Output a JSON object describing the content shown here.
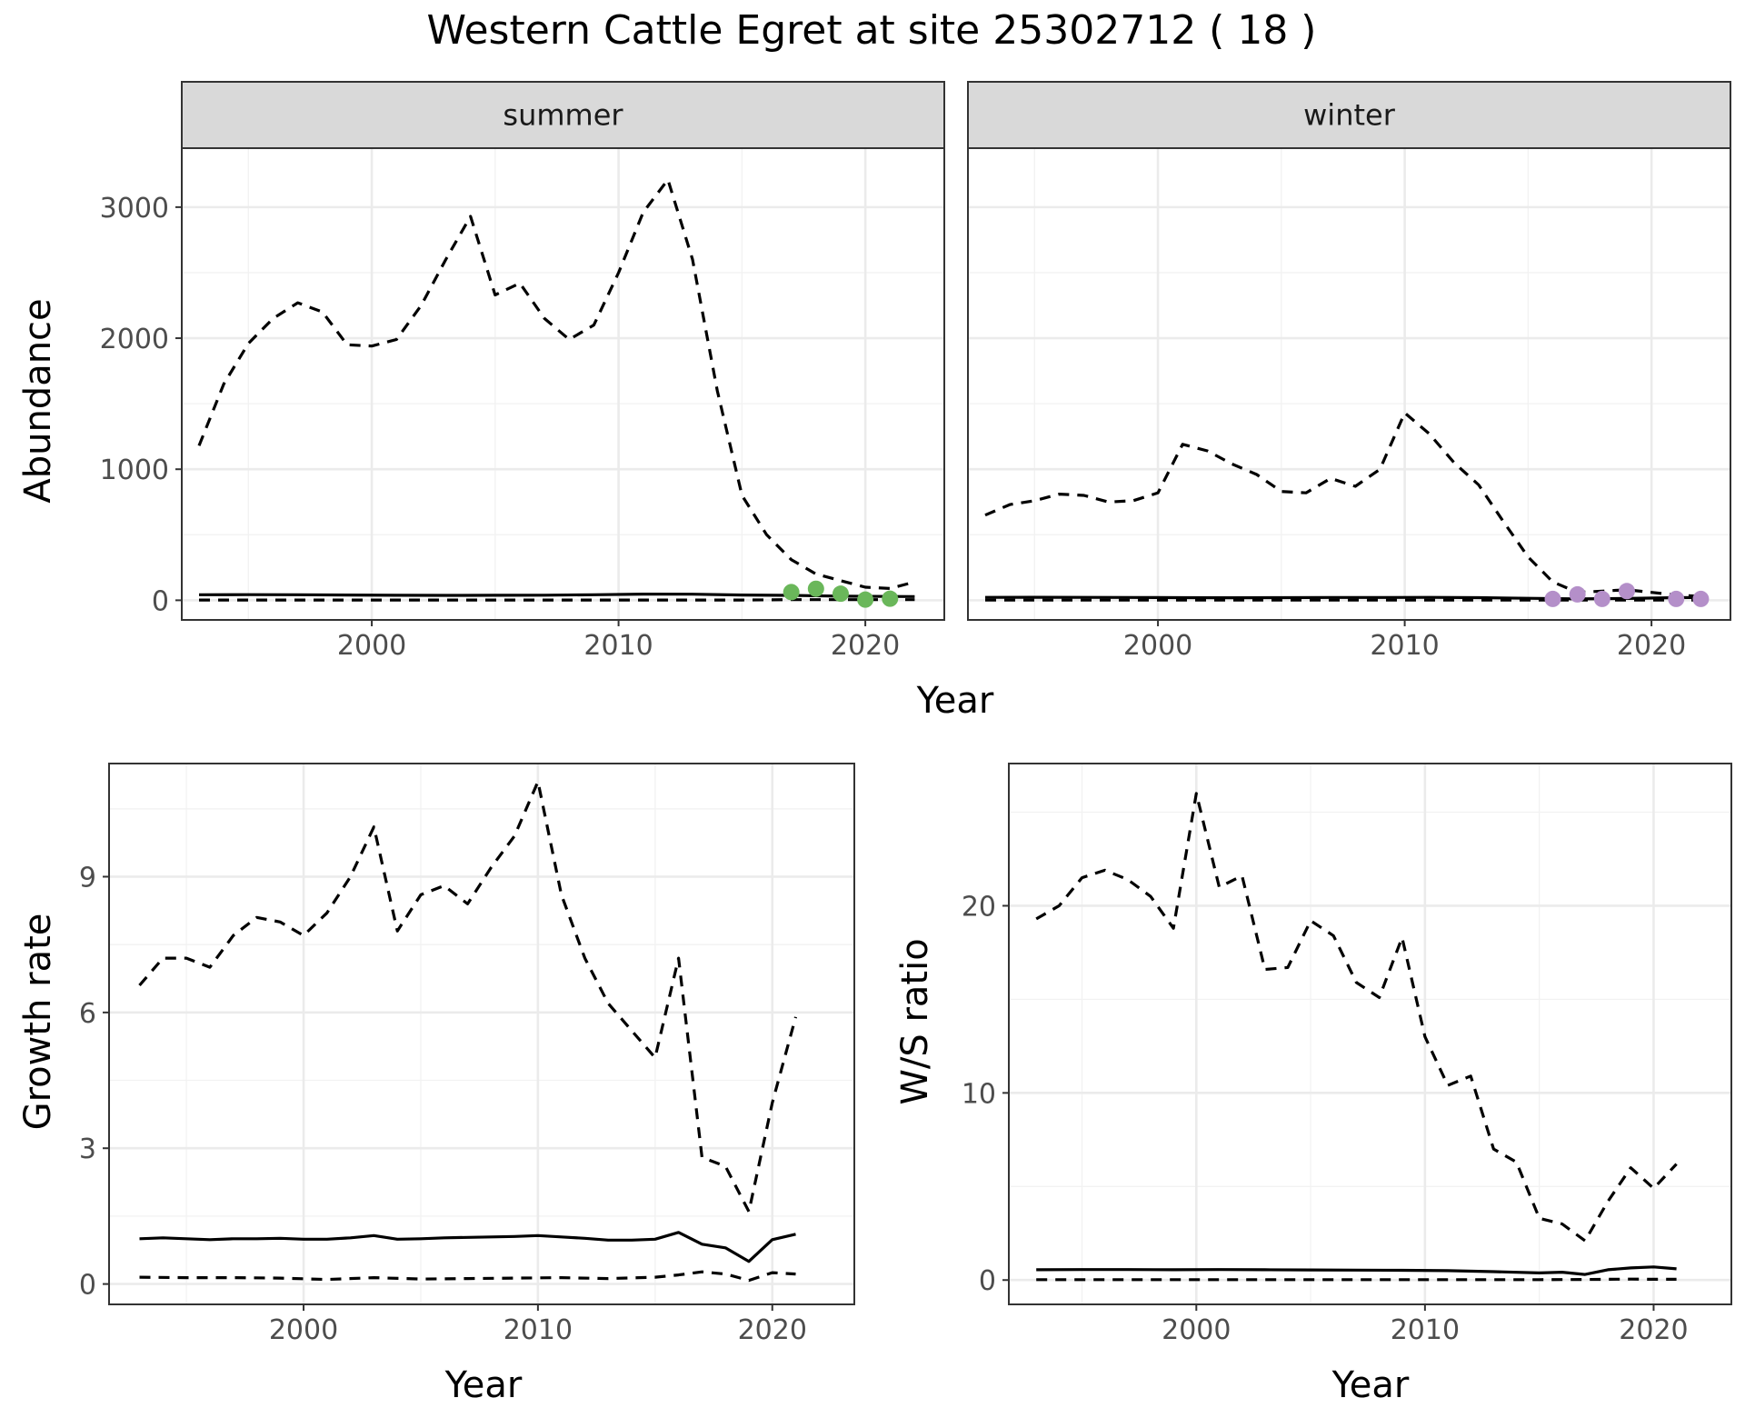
{
  "figure": {
    "title": "Western Cattle Egret at site 25302712 ( 18 )",
    "colors": {
      "summer_points": "#6ab75a",
      "winter_points": "#b48fc9",
      "lines": "#000000",
      "strip": "#d9d9d9"
    }
  },
  "chart_data": [
    {
      "id": "abundance",
      "type": "line",
      "ylabel": "Abundance",
      "xlabel": "Year",
      "facets": [
        "summer",
        "winter"
      ],
      "xlim": [
        1992.3,
        2023.2
      ],
      "ylim": [
        -150,
        3450
      ],
      "x_major_ticks": [
        2000,
        2010,
        2020
      ],
      "y_major_ticks": [
        0,
        1000,
        2000,
        3000
      ],
      "grid": true,
      "panels": [
        {
          "facet": "summer",
          "point_color": "#6ab75a",
          "series": [
            {
              "style": "dashed",
              "x": [
                1993,
                1994,
                1995,
                1996,
                1997,
                1998,
                1999,
                2000,
                2001,
                2002,
                2003,
                2004,
                2005,
                2006,
                2007,
                2008,
                2009,
                2010,
                2011,
                2012,
                2013,
                2014,
                2015,
                2016,
                2017,
                2018,
                2019,
                2020,
                2021,
                2022
              ],
              "y": [
                1180,
                1650,
                1960,
                2150,
                2270,
                2200,
                1950,
                1940,
                1990,
                2250,
                2600,
                2930,
                2330,
                2420,
                2150,
                1990,
                2100,
                2500,
                2960,
                3210,
                2600,
                1600,
                800,
                500,
                310,
                200,
                150,
                100,
                90,
                140
              ]
            },
            {
              "style": "solid",
              "x": [
                1993,
                1995,
                1997,
                1999,
                2001,
                2003,
                2005,
                2007,
                2009,
                2011,
                2013,
                2015,
                2017,
                2019,
                2021,
                2022
              ],
              "y": [
                42,
                43,
                42,
                40,
                38,
                37,
                38,
                39,
                42,
                47,
                46,
                40,
                37,
                31,
                29,
                28
              ]
            },
            {
              "style": "dashed",
              "x": [
                1993,
                1995,
                1997,
                1999,
                2001,
                2003,
                2005,
                2007,
                2009,
                2011,
                2013,
                2015,
                2017,
                2019,
                2021,
                2022
              ],
              "y": [
                2,
                2,
                2,
                2,
                2,
                2,
                2,
                2,
                2,
                2,
                2,
                2,
                5,
                5,
                5,
                5
              ]
            }
          ],
          "points": {
            "x": [
              2017,
              2018,
              2019,
              2020,
              2021
            ],
            "y": [
              62,
              88,
              50,
              5,
              12
            ]
          }
        },
        {
          "facet": "winter",
          "point_color": "#b48fc9",
          "series": [
            {
              "style": "dashed",
              "x": [
                1993,
                1994,
                1995,
                1996,
                1997,
                1998,
                1999,
                2000,
                2001,
                2002,
                2003,
                2004,
                2005,
                2006,
                2007,
                2008,
                2009,
                2010,
                2011,
                2012,
                2013,
                2014,
                2015,
                2016,
                2017,
                2018,
                2019,
                2020,
                2021,
                2022
              ],
              "y": [
                650,
                730,
                760,
                810,
                800,
                750,
                760,
                820,
                1190,
                1140,
                1040,
                960,
                830,
                820,
                930,
                870,
                1000,
                1430,
                1270,
                1050,
                880,
                600,
                330,
                140,
                60,
                70,
                80,
                60,
                40,
                30
              ]
            },
            {
              "style": "solid",
              "x": [
                1993,
                1995,
                1997,
                1999,
                2001,
                2003,
                2005,
                2007,
                2009,
                2011,
                2013,
                2015,
                2017,
                2019,
                2021,
                2022
              ],
              "y": [
                22,
                23,
                22,
                21,
                20,
                19,
                20,
                21,
                21,
                22,
                20,
                15,
                10,
                14,
                20,
                21
              ]
            },
            {
              "style": "dashed",
              "x": [
                1993,
                1995,
                1997,
                1999,
                2001,
                2003,
                2005,
                2007,
                2009,
                2011,
                2013,
                2015,
                2017,
                2019,
                2021,
                2022
              ],
              "y": [
                1,
                1,
                1,
                1,
                1,
                1,
                1,
                1,
                1,
                1,
                1,
                1,
                1,
                1,
                1,
                1
              ]
            }
          ],
          "points": {
            "x": [
              2016,
              2017,
              2018,
              2019,
              2021,
              2022
            ],
            "y": [
              10,
              45,
              10,
              70,
              10,
              10
            ]
          }
        }
      ]
    },
    {
      "id": "growth",
      "type": "line",
      "ylabel": "Growth rate",
      "xlabel": "Year",
      "xlim": [
        1991.7,
        2023.5
      ],
      "ylim": [
        -0.45,
        11.5
      ],
      "x_major_ticks": [
        2000,
        2010,
        2020
      ],
      "y_major_ticks": [
        0,
        3,
        6,
        9
      ],
      "grid": true,
      "series": [
        {
          "style": "dashed",
          "x": [
            1993,
            1994,
            1995,
            1996,
            1997,
            1998,
            1999,
            2000,
            2001,
            2002,
            2003,
            2004,
            2005,
            2006,
            2007,
            2008,
            2009,
            2010,
            2011,
            2012,
            2013,
            2014,
            2015,
            2016,
            2017,
            2018,
            2019,
            2020,
            2021
          ],
          "y": [
            6.6,
            7.2,
            7.2,
            7.0,
            7.7,
            8.1,
            8.0,
            7.7,
            8.2,
            9.0,
            10.1,
            7.8,
            8.6,
            8.8,
            8.4,
            9.2,
            9.9,
            11.1,
            8.6,
            7.2,
            6.2,
            5.6,
            5.0,
            7.2,
            2.8,
            2.6,
            1.6,
            4.0,
            5.9
          ]
        },
        {
          "style": "solid",
          "x": [
            1993,
            1994,
            1995,
            1996,
            1997,
            1998,
            1999,
            2000,
            2001,
            2002,
            2003,
            2004,
            2005,
            2006,
            2007,
            2008,
            2009,
            2010,
            2011,
            2012,
            2013,
            2014,
            2015,
            2016,
            2017,
            2018,
            2019,
            2020,
            2021
          ],
          "y": [
            1.0,
            1.02,
            1.0,
            0.98,
            1.0,
            1.0,
            1.01,
            0.99,
            0.99,
            1.02,
            1.07,
            0.99,
            1.0,
            1.02,
            1.03,
            1.04,
            1.05,
            1.07,
            1.04,
            1.01,
            0.97,
            0.97,
            0.99,
            1.14,
            0.88,
            0.8,
            0.5,
            0.98,
            1.1
          ]
        },
        {
          "style": "dashed",
          "x": [
            1993,
            1995,
            1997,
            1999,
            2001,
            2003,
            2005,
            2007,
            2009,
            2011,
            2013,
            2015,
            2016,
            2017,
            2018,
            2019,
            2020,
            2021
          ],
          "y": [
            0.15,
            0.14,
            0.14,
            0.13,
            0.1,
            0.14,
            0.11,
            0.12,
            0.13,
            0.14,
            0.12,
            0.15,
            0.2,
            0.27,
            0.22,
            0.08,
            0.25,
            0.22
          ]
        }
      ]
    },
    {
      "id": "ratio",
      "type": "line",
      "ylabel": "W/S ratio",
      "xlabel": "Year",
      "xlim": [
        1991.8,
        2023.4
      ],
      "ylim": [
        -1.3,
        27.6
      ],
      "x_major_ticks": [
        2000,
        2010,
        2020
      ],
      "y_major_ticks": [
        0,
        10,
        20
      ],
      "grid": true,
      "series": [
        {
          "style": "dashed",
          "x": [
            1993,
            1994,
            1995,
            1996,
            1997,
            1998,
            1999,
            2000,
            2001,
            2002,
            2003,
            2004,
            2005,
            2006,
            2007,
            2008,
            2009,
            2010,
            2011,
            2012,
            2013,
            2014,
            2015,
            2016,
            2017,
            2018,
            2019,
            2020,
            2021
          ],
          "y": [
            19.3,
            20.0,
            21.5,
            21.9,
            21.4,
            20.5,
            18.8,
            26.0,
            21.0,
            21.6,
            16.6,
            16.7,
            19.2,
            18.4,
            15.9,
            15.1,
            18.3,
            13.0,
            10.4,
            10.9,
            7.0,
            6.3,
            3.3,
            3.0,
            2.1,
            4.2,
            6.0,
            4.9,
            6.2
          ]
        },
        {
          "style": "solid",
          "x": [
            1993,
            1995,
            1997,
            1999,
            2001,
            2003,
            2005,
            2007,
            2009,
            2011,
            2013,
            2015,
            2016,
            2017,
            2018,
            2019,
            2020,
            2021
          ],
          "y": [
            0.55,
            0.56,
            0.56,
            0.55,
            0.56,
            0.55,
            0.54,
            0.53,
            0.52,
            0.5,
            0.45,
            0.38,
            0.42,
            0.3,
            0.55,
            0.65,
            0.7,
            0.6
          ]
        },
        {
          "style": "dashed",
          "x": [
            1993,
            1995,
            1997,
            1999,
            2001,
            2003,
            2005,
            2007,
            2009,
            2011,
            2013,
            2015,
            2017,
            2019,
            2020,
            2021
          ],
          "y": [
            0.02,
            0.02,
            0.02,
            0.02,
            0.02,
            0.02,
            0.02,
            0.02,
            0.02,
            0.02,
            0.02,
            0.02,
            0.03,
            0.05,
            0.04,
            0.04
          ]
        }
      ]
    }
  ]
}
